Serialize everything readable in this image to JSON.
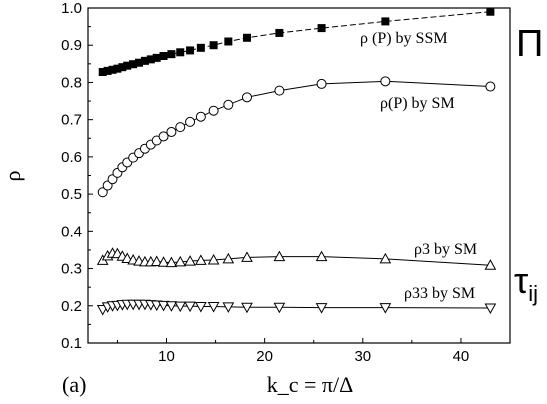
{
  "chart_data": {
    "type": "line",
    "xlabel": "k_c = π/Δ",
    "ylabel": "ρ",
    "xlim": [
      2,
      45
    ],
    "ylim": [
      0.1,
      1.0
    ],
    "xticks": [
      10,
      20,
      30,
      40
    ],
    "yticks": [
      0.1,
      0.2,
      0.3,
      0.4,
      0.5,
      0.6,
      0.7,
      0.8,
      0.9,
      1.0
    ],
    "panel_label": "(a)",
    "grid": false,
    "legend": "none",
    "series": [
      {
        "name": "ρ(P) by SSM",
        "marker": "filled-square",
        "line": "dashed",
        "x": [
          3.5,
          4.0,
          4.5,
          5.0,
          5.5,
          6.0,
          6.6,
          7.2,
          7.8,
          8.4,
          9.0,
          9.7,
          10.5,
          11.4,
          12.4,
          13.5,
          14.8,
          16.3,
          18.2,
          21.5,
          25.8,
          32.3,
          43.0
        ],
        "y": [
          0.828,
          0.831,
          0.834,
          0.837,
          0.841,
          0.845,
          0.849,
          0.853,
          0.858,
          0.862,
          0.866,
          0.871,
          0.876,
          0.881,
          0.886,
          0.893,
          0.9,
          0.91,
          0.92,
          0.933,
          0.946,
          0.964,
          0.99
        ],
        "annotation": "ρ (P) by SSM"
      },
      {
        "name": "ρ(P) by SM",
        "marker": "open-circle",
        "line": "solid",
        "x": [
          3.5,
          4.0,
          4.5,
          5.0,
          5.5,
          6.0,
          6.6,
          7.2,
          7.8,
          8.4,
          9.0,
          9.7,
          10.5,
          11.4,
          12.4,
          13.5,
          14.8,
          16.3,
          18.2,
          21.5,
          25.8,
          32.3,
          43.0
        ],
        "y": [
          0.505,
          0.523,
          0.54,
          0.557,
          0.572,
          0.585,
          0.598,
          0.61,
          0.622,
          0.633,
          0.644,
          0.655,
          0.667,
          0.68,
          0.694,
          0.708,
          0.724,
          0.74,
          0.76,
          0.778,
          0.796,
          0.803,
          0.789
        ],
        "annotation": "ρ(P) by SM"
      },
      {
        "name": "ρ3 by SM",
        "marker": "open-triangle-up",
        "line": "solid",
        "x": [
          3.5,
          4.0,
          4.5,
          5.0,
          5.5,
          6.0,
          6.6,
          7.2,
          7.8,
          8.4,
          9.0,
          9.7,
          10.5,
          11.4,
          12.4,
          13.5,
          14.8,
          16.3,
          18.2,
          21.5,
          25.8,
          32.3,
          43.0
        ],
        "y": [
          0.322,
          0.334,
          0.341,
          0.34,
          0.333,
          0.327,
          0.323,
          0.32,
          0.318,
          0.318,
          0.319,
          0.317,
          0.316,
          0.318,
          0.32,
          0.322,
          0.323,
          0.326,
          0.33,
          0.332,
          0.332,
          0.326,
          0.309
        ],
        "annotation": "ρ3 by SM"
      },
      {
        "name": "ρ33 by SM",
        "marker": "open-triangle-down",
        "line": "solid",
        "x": [
          3.5,
          4.0,
          4.5,
          5.0,
          5.5,
          6.0,
          6.6,
          7.2,
          7.8,
          8.4,
          9.0,
          9.7,
          10.5,
          11.4,
          12.4,
          13.5,
          14.8,
          16.3,
          18.2,
          21.5,
          25.8,
          32.3,
          43.0
        ],
        "y": [
          0.19,
          0.197,
          0.2,
          0.201,
          0.203,
          0.204,
          0.204,
          0.204,
          0.204,
          0.203,
          0.202,
          0.201,
          0.2,
          0.199,
          0.199,
          0.198,
          0.198,
          0.197,
          0.196,
          0.196,
          0.195,
          0.195,
          0.194
        ],
        "annotation": "ρ33 by SM"
      }
    ],
    "group_labels": {
      "pi": "Π",
      "tau": "τ",
      "tau_sub": "ij"
    }
  }
}
